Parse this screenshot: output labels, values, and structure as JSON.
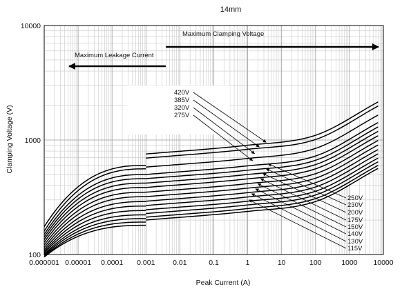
{
  "chart_data": {
    "type": "line",
    "title": "14mm",
    "xlabel": "Peak Current (A)",
    "ylabel": "Clamping Voltage (V)",
    "xscale": "log",
    "yscale": "log",
    "xlim": [
      1e-06,
      10000
    ],
    "ylim": [
      100,
      10000
    ],
    "x_ticks": [
      "0.000001",
      "0.00001",
      "0.0001",
      "0.001",
      "0.01",
      "0.1",
      "1",
      "10",
      "100",
      "1000",
      "10000"
    ],
    "y_ticks": [
      "100",
      "1000",
      "10000"
    ],
    "grid": true,
    "annotations": {
      "clamping": "Maximum Clamping Voltage",
      "leakage": "Maximum Leakage Current"
    },
    "leakage_curves": [
      {
        "y_start": 175,
        "y_end": 600
      },
      {
        "y_start": 160,
        "y_end": 560
      },
      {
        "y_start": 150,
        "y_end": 500
      },
      {
        "y_start": 142,
        "y_end": 460
      },
      {
        "y_start": 135,
        "y_end": 420
      },
      {
        "y_start": 128,
        "y_end": 385
      },
      {
        "y_start": 121,
        "y_end": 350
      },
      {
        "y_start": 115,
        "y_end": 320
      },
      {
        "y_start": 110,
        "y_end": 290
      },
      {
        "y_start": 106,
        "y_end": 265
      },
      {
        "y_start": 103,
        "y_end": 242
      },
      {
        "y_start": 100,
        "y_end": 222
      },
      {
        "y_start": 98,
        "y_end": 206
      },
      {
        "y_start": 96,
        "y_end": 192
      },
      {
        "y_start": 95,
        "y_end": 180
      }
    ],
    "series": [
      {
        "name": "420V",
        "values": [
          {
            "x": 0.001,
            "y": 755
          },
          {
            "x": 1,
            "y": 900
          },
          {
            "x": 100,
            "y": 1100
          },
          {
            "x": 7000,
            "y": 2150
          }
        ]
      },
      {
        "name": "385V",
        "values": [
          {
            "x": 0.001,
            "y": 695
          },
          {
            "x": 1,
            "y": 830
          },
          {
            "x": 100,
            "y": 1010
          },
          {
            "x": 7000,
            "y": 1980
          }
        ]
      },
      {
        "name": "320V",
        "values": [
          {
            "x": 0.001,
            "y": 580
          },
          {
            "x": 1,
            "y": 690
          },
          {
            "x": 100,
            "y": 845
          },
          {
            "x": 7000,
            "y": 1650
          }
        ]
      },
      {
        "name": "275V",
        "values": [
          {
            "x": 0.001,
            "y": 500
          },
          {
            "x": 1,
            "y": 595
          },
          {
            "x": 100,
            "y": 725
          },
          {
            "x": 7000,
            "y": 1420
          }
        ]
      },
      {
        "name": "250V",
        "values": [
          {
            "x": 0.001,
            "y": 460
          },
          {
            "x": 1,
            "y": 545
          },
          {
            "x": 100,
            "y": 665
          },
          {
            "x": 7000,
            "y": 1300
          }
        ]
      },
      {
        "name": "230V",
        "values": [
          {
            "x": 0.001,
            "y": 420
          },
          {
            "x": 1,
            "y": 500
          },
          {
            "x": 100,
            "y": 610
          },
          {
            "x": 7000,
            "y": 1190
          }
        ]
      },
      {
        "name": "200V",
        "values": [
          {
            "x": 0.001,
            "y": 385
          },
          {
            "x": 1,
            "y": 458
          },
          {
            "x": 100,
            "y": 560
          },
          {
            "x": 7000,
            "y": 1090
          }
        ]
      },
      {
        "name": "175V",
        "values": [
          {
            "x": 0.001,
            "y": 350
          },
          {
            "x": 1,
            "y": 416
          },
          {
            "x": 100,
            "y": 508
          },
          {
            "x": 7000,
            "y": 990
          }
        ]
      },
      {
        "name": "150V",
        "values": [
          {
            "x": 0.001,
            "y": 320
          },
          {
            "x": 1,
            "y": 380
          },
          {
            "x": 100,
            "y": 464
          },
          {
            "x": 7000,
            "y": 905
          }
        ]
      },
      {
        "name": "140V",
        "values": [
          {
            "x": 0.001,
            "y": 292
          },
          {
            "x": 1,
            "y": 347
          },
          {
            "x": 100,
            "y": 424
          },
          {
            "x": 7000,
            "y": 825
          }
        ]
      },
      {
        "name": "130V",
        "values": [
          {
            "x": 0.001,
            "y": 268
          },
          {
            "x": 1,
            "y": 318
          },
          {
            "x": 100,
            "y": 389
          },
          {
            "x": 7000,
            "y": 757
          }
        ]
      },
      {
        "name": "115V",
        "values": [
          {
            "x": 0.001,
            "y": 246
          },
          {
            "x": 1,
            "y": 292
          },
          {
            "x": 100,
            "y": 357
          },
          {
            "x": 7000,
            "y": 695
          }
        ]
      },
      {
        "values": [
          {
            "x": 0.001,
            "y": 228
          },
          {
            "x": 1,
            "y": 271
          },
          {
            "x": 100,
            "y": 331
          },
          {
            "x": 7000,
            "y": 645
          }
        ]
      },
      {
        "values": [
          {
            "x": 0.001,
            "y": 212
          },
          {
            "x": 1,
            "y": 252
          },
          {
            "x": 100,
            "y": 308
          },
          {
            "x": 7000,
            "y": 600
          }
        ]
      },
      {
        "values": [
          {
            "x": 0.001,
            "y": 200
          },
          {
            "x": 1,
            "y": 238
          },
          {
            "x": 100,
            "y": 290
          },
          {
            "x": 7000,
            "y": 565
          }
        ]
      }
    ],
    "label_targets": [
      {
        "name": "420V",
        "x": 3.5,
        "y": 955
      },
      {
        "name": "385V",
        "x": 2.2,
        "y": 870
      },
      {
        "name": "320V",
        "x": 1.6,
        "y": 760
      },
      {
        "name": "275V",
        "x": 1.4,
        "y": 660
      },
      {
        "name": "250V",
        "x": 4.0,
        "y": 620
      },
      {
        "name": "230V",
        "x": 3.5,
        "y": 560
      },
      {
        "name": "200V",
        "x": 2.8,
        "y": 510
      },
      {
        "name": "175V",
        "x": 2.4,
        "y": 460
      },
      {
        "name": "150V",
        "x": 2.0,
        "y": 415
      },
      {
        "name": "140V",
        "x": 1.7,
        "y": 375
      },
      {
        "name": "130V",
        "x": 1.3,
        "y": 340
      },
      {
        "name": "115V",
        "x": 1.1,
        "y": 300
      }
    ]
  }
}
